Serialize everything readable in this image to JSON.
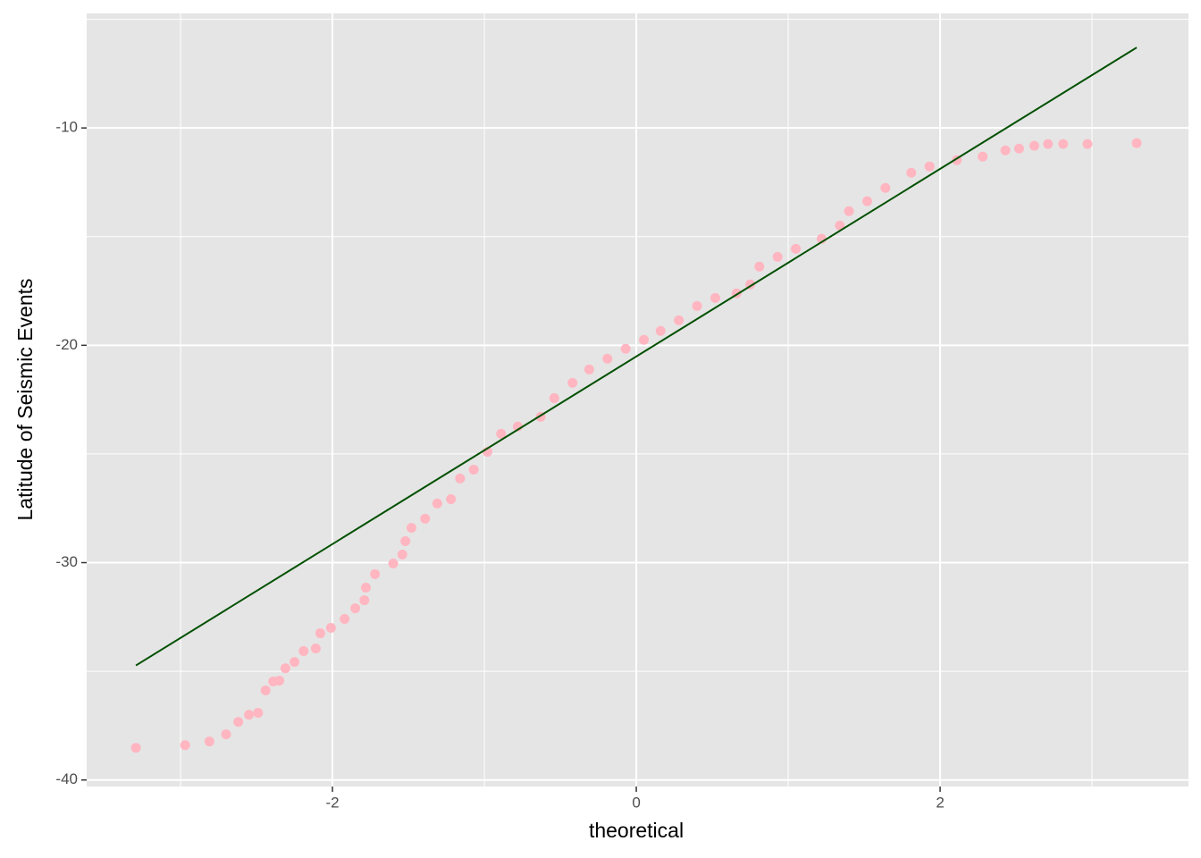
{
  "chart_data": {
    "type": "scatter",
    "x_label": "theoretical",
    "y_label": "Latitude of Seismic Events",
    "x": [
      -3.294,
      -2.97,
      -2.81,
      -2.7,
      -2.62,
      -2.55,
      -2.49,
      -2.44,
      -2.39,
      -2.35,
      -2.31,
      -2.25,
      -2.19,
      -2.11,
      -2.08,
      -2.01,
      -1.92,
      -1.85,
      -1.79,
      -1.78,
      -1.72,
      -1.6,
      -1.54,
      -1.52,
      -1.48,
      -1.39,
      -1.31,
      -1.22,
      -1.16,
      -1.07,
      -0.98,
      -0.89,
      -0.78,
      -0.63,
      -0.54,
      -0.42,
      -0.31,
      -0.19,
      -0.07,
      0.05,
      0.16,
      0.28,
      0.4,
      0.52,
      0.66,
      0.75,
      0.81,
      0.93,
      1.05,
      1.22,
      1.34,
      1.4,
      1.52,
      1.64,
      1.81,
      1.93,
      2.11,
      2.28,
      2.43,
      2.52,
      2.62,
      2.71,
      2.81,
      2.97,
      3.294
    ],
    "values": [
      -38.52,
      -38.4,
      -38.23,
      -37.9,
      -37.33,
      -37.0,
      -36.91,
      -35.88,
      -35.47,
      -35.43,
      -34.86,
      -34.57,
      -34.07,
      -33.95,
      -33.25,
      -33.0,
      -32.59,
      -32.1,
      -31.73,
      -31.15,
      -30.53,
      -30.04,
      -29.63,
      -29.01,
      -28.4,
      -27.98,
      -27.28,
      -27.08,
      -26.13,
      -25.72,
      -24.9,
      -24.07,
      -23.74,
      -23.29,
      -22.43,
      -21.73,
      -21.11,
      -20.62,
      -20.16,
      -19.75,
      -19.34,
      -18.85,
      -18.19,
      -17.82,
      -17.61,
      -17.2,
      -16.38,
      -15.93,
      -15.56,
      -15.1,
      -14.49,
      -13.83,
      -13.37,
      -12.76,
      -12.06,
      -11.77,
      -11.48,
      -11.32,
      -11.03,
      -10.95,
      -10.82,
      -10.74,
      -10.74,
      -10.74,
      -10.7
    ],
    "color": "#ffb6c1",
    "reference_line": {
      "x": [
        -3.294,
        3.294
      ],
      "values": [
        -34.73,
        -6.3
      ],
      "color": "#005000"
    },
    "xlim": [
      -3.618,
      3.635
    ],
    "ylim": [
      -40.3,
      -4.73
    ],
    "xticks": [
      -2,
      0,
      2
    ],
    "yticks": [
      -10,
      -20,
      -30,
      -40
    ],
    "x_minor_grid": [
      -3,
      -1,
      1,
      3
    ],
    "y_minor_grid": [
      -5,
      -15,
      -25,
      -35
    ],
    "grid": true
  }
}
